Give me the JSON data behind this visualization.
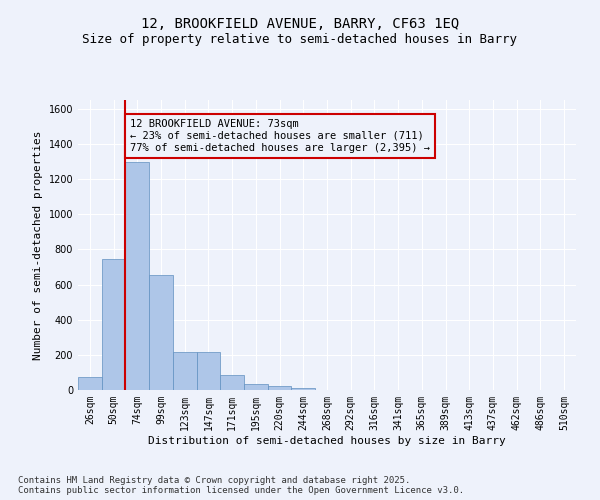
{
  "title_line1": "12, BROOKFIELD AVENUE, BARRY, CF63 1EQ",
  "title_line2": "Size of property relative to semi-detached houses in Barry",
  "xlabel": "Distribution of semi-detached houses by size in Barry",
  "ylabel": "Number of semi-detached properties",
  "categories": [
    "26sqm",
    "50sqm",
    "74sqm",
    "99sqm",
    "123sqm",
    "147sqm",
    "171sqm",
    "195sqm",
    "220sqm",
    "244sqm",
    "268sqm",
    "292sqm",
    "316sqm",
    "341sqm",
    "365sqm",
    "389sqm",
    "413sqm",
    "437sqm",
    "462sqm",
    "486sqm",
    "510sqm"
  ],
  "bar_values": [
    75,
    745,
    1295,
    655,
    215,
    215,
    85,
    35,
    20,
    10,
    0,
    0,
    0,
    0,
    0,
    0,
    0,
    0,
    0,
    0,
    0
  ],
  "bar_color": "#aec6e8",
  "bar_edge_color": "#6090c0",
  "vline_color": "#cc0000",
  "ylim": [
    0,
    1650
  ],
  "yticks": [
    0,
    200,
    400,
    600,
    800,
    1000,
    1200,
    1400,
    1600
  ],
  "annotation_text": "12 BROOKFIELD AVENUE: 73sqm\n← 23% of semi-detached houses are smaller (711)\n77% of semi-detached houses are larger (2,395) →",
  "annotation_box_color": "#cc0000",
  "footer_text": "Contains HM Land Registry data © Crown copyright and database right 2025.\nContains public sector information licensed under the Open Government Licence v3.0.",
  "background_color": "#eef2fb",
  "grid_color": "#ffffff",
  "title_fontsize": 10,
  "subtitle_fontsize": 9,
  "axis_label_fontsize": 8,
  "tick_fontsize": 7,
  "annotation_fontsize": 7.5,
  "footer_fontsize": 6.5
}
